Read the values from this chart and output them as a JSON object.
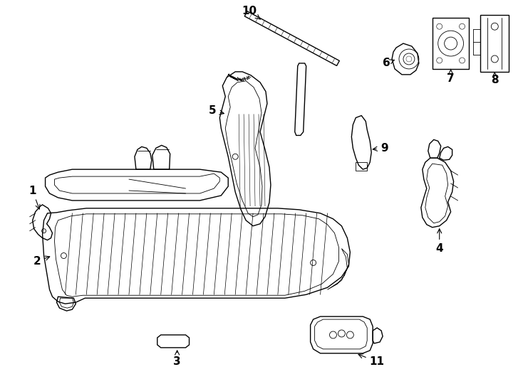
{
  "background_color": "#ffffff",
  "line_color": "#000000",
  "lw": 1.0,
  "tlw": 0.6,
  "fig_width": 7.34,
  "fig_height": 5.4,
  "dpi": 100
}
